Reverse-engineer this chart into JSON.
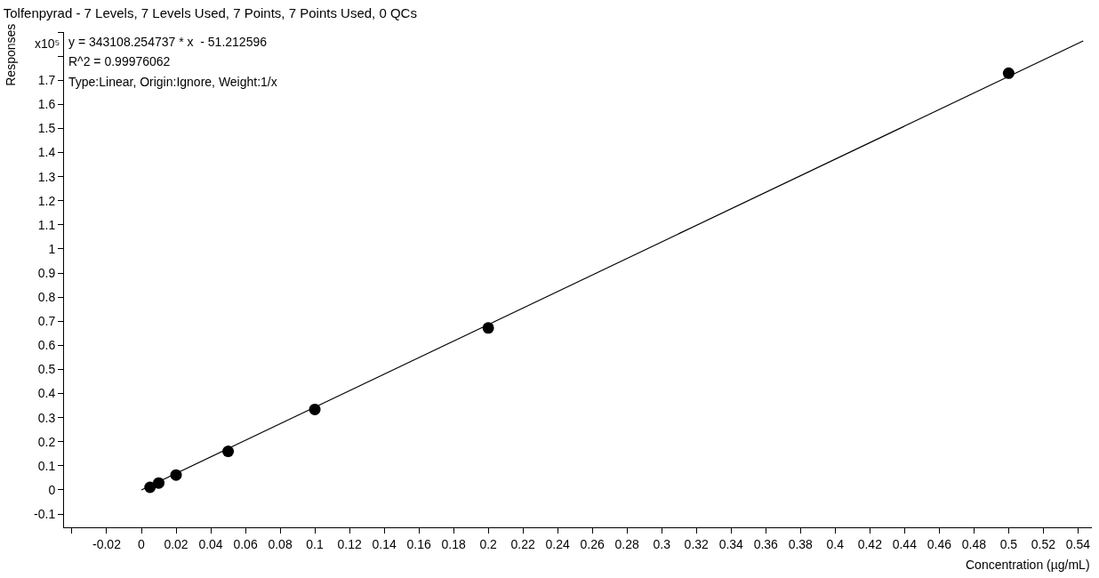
{
  "chart_data": {
    "type": "scatter",
    "title": "Tolfenpyrad - 7 Levels, 7 Levels Used, 7 Points, 7 Points Used, 0 QCs",
    "xlabel": "Concentration (µg/mL)",
    "ylabel": "Responses",
    "series": [
      {
        "color": "#000000",
        "marker": "circle",
        "x": [
          0.005,
          0.01,
          0.02,
          0.05,
          0.1,
          0.2,
          0.5
        ],
        "values": [
          0.011,
          0.029,
          0.062,
          0.16,
          0.334,
          0.672,
          1.729
        ]
      },
      {
        "type": "line",
        "color": "#000000",
        "line_style": "solid",
        "x": [
          0,
          0.543
        ],
        "values": [
          0,
          1.863
        ]
      }
    ],
    "annotations": [
      "x10⁵",
      "y = 343108.254737 * x  - 51.212596",
      "R^2 = 0.99976062",
      "Type:Linear, Origin:Ignore, Weight:1/x"
    ],
    "xlim": [
      -0.0446,
      0.548
    ],
    "ylim": [
      -0.155,
      1.9
    ],
    "xticks": [
      {
        "value": -0.04,
        "label": null
      },
      -0.02,
      0,
      0.02,
      0.04,
      0.06,
      0.08,
      0.1,
      0.12,
      0.14,
      0.16,
      0.18,
      0.2,
      0.22,
      0.24,
      0.26,
      0.28,
      0.3,
      0.32,
      0.34,
      0.36,
      0.38,
      0.4,
      0.42,
      0.44,
      0.46,
      0.48,
      0.5,
      0.52,
      0.54
    ],
    "yticks": [
      -0.1,
      0,
      0.1,
      0.2,
      0.3,
      0.4,
      0.5,
      0.6,
      0.7,
      0.8,
      0.9,
      1,
      1.1,
      1.2,
      1.3,
      1.4,
      1.5,
      1.6,
      1.7,
      {
        "value": 1.8,
        "label": null
      },
      {
        "value": 1.9,
        "label": null
      }
    ],
    "grid": false,
    "legend": false
  }
}
